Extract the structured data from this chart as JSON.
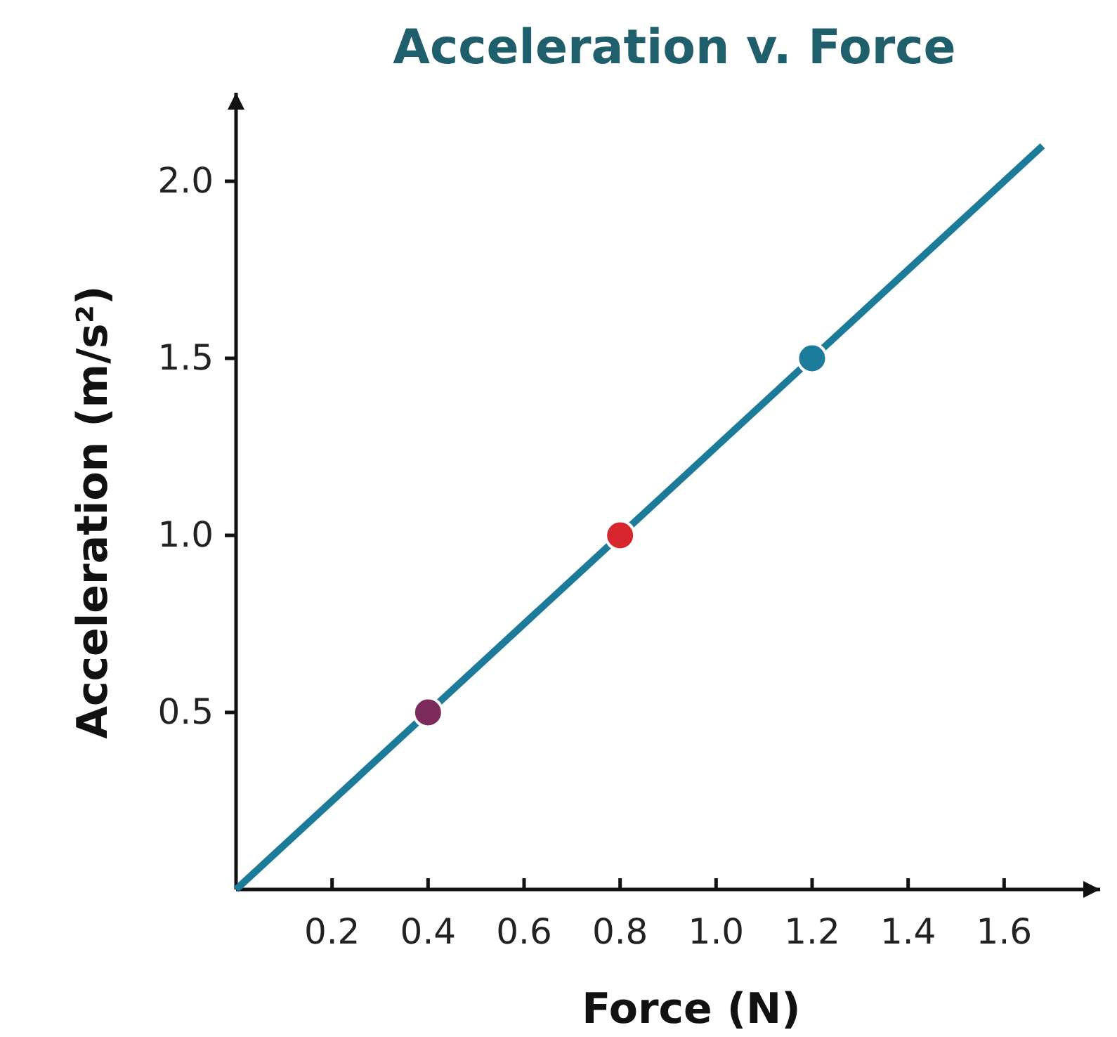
{
  "chart_data": {
    "type": "scatter",
    "title": "Acceleration v. Force",
    "xlabel": "Force (N)",
    "ylabel": "Acceleration (m/s²)",
    "xlim": [
      0,
      1.8
    ],
    "ylim": [
      0,
      2.25
    ],
    "xticks": [
      {
        "value": 0.2,
        "label": "0.2"
      },
      {
        "value": 0.4,
        "label": "0.4"
      },
      {
        "value": 0.6,
        "label": "0.6"
      },
      {
        "value": 0.8,
        "label": "0.8"
      },
      {
        "value": 1.0,
        "label": "1.0"
      },
      {
        "value": 1.2,
        "label": "1.2"
      },
      {
        "value": 1.4,
        "label": "1.4"
      },
      {
        "value": 1.6,
        "label": "1.6"
      }
    ],
    "yticks": [
      {
        "value": 0.5,
        "label": "0.5"
      },
      {
        "value": 1.0,
        "label": "1.0"
      },
      {
        "value": 1.5,
        "label": "1.5"
      },
      {
        "value": 2.0,
        "label": "2.0"
      }
    ],
    "series": [
      {
        "type": "line",
        "color": "#1b7b99",
        "x": [
          0,
          1.68
        ],
        "values": [
          0,
          2.1
        ]
      },
      {
        "x": [
          0.4,
          0.8,
          1.2
        ],
        "values": [
          0.5,
          1.0,
          1.5
        ],
        "colors": [
          "#7b2a5c",
          "#d8262e",
          "#1b7b99"
        ],
        "marker": "circle"
      }
    ]
  }
}
